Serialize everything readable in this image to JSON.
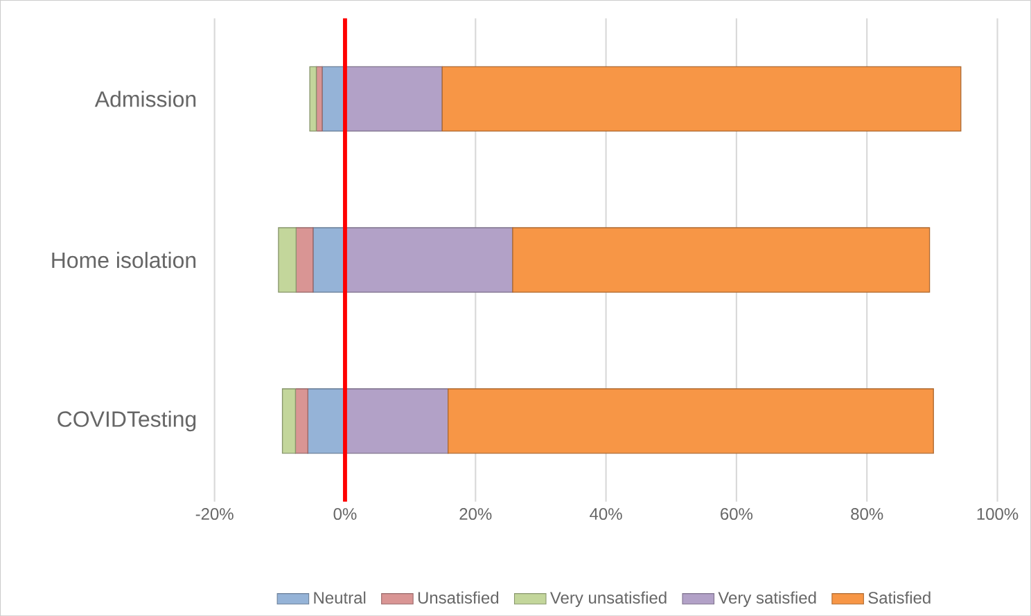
{
  "chart_data": {
    "type": "bar",
    "orientation": "horizontal",
    "stacked": true,
    "categories": [
      "Admission",
      "Home isolation",
      "COVIDTesting"
    ],
    "series": [
      {
        "name": "Neutral",
        "color": "#95b3d7",
        "values": [
          -3.5,
          -4.9,
          -5.7
        ]
      },
      {
        "name": "Unsatisfied",
        "color": "#d99594",
        "values": [
          -0.9,
          -2.6,
          -1.9
        ]
      },
      {
        "name": "Very unsatisfied",
        "color": "#c3d69b",
        "values": [
          -1.0,
          -2.7,
          -2.0
        ]
      },
      {
        "name": "Very satisfied",
        "color": "#b2a1c7",
        "values": [
          14.9,
          25.7,
          15.8
        ]
      },
      {
        "name": "Satisfied",
        "color": "#f79646",
        "values": [
          79.5,
          63.9,
          74.4
        ]
      }
    ],
    "xlim": [
      -20,
      100
    ],
    "xticks": [
      {
        "value": -20,
        "label": "-20%"
      },
      {
        "value": 0,
        "label": "0%"
      },
      {
        "value": 20,
        "label": "20%"
      },
      {
        "value": 40,
        "label": "40%"
      },
      {
        "value": 60,
        "label": "60%"
      },
      {
        "value": 80,
        "label": "80%"
      },
      {
        "value": 100,
        "label": "100%"
      }
    ],
    "ref_lines": [
      {
        "axis": "x",
        "value": 0,
        "color": "#ff0000"
      }
    ],
    "grid": "x",
    "legend": "bottom"
  }
}
